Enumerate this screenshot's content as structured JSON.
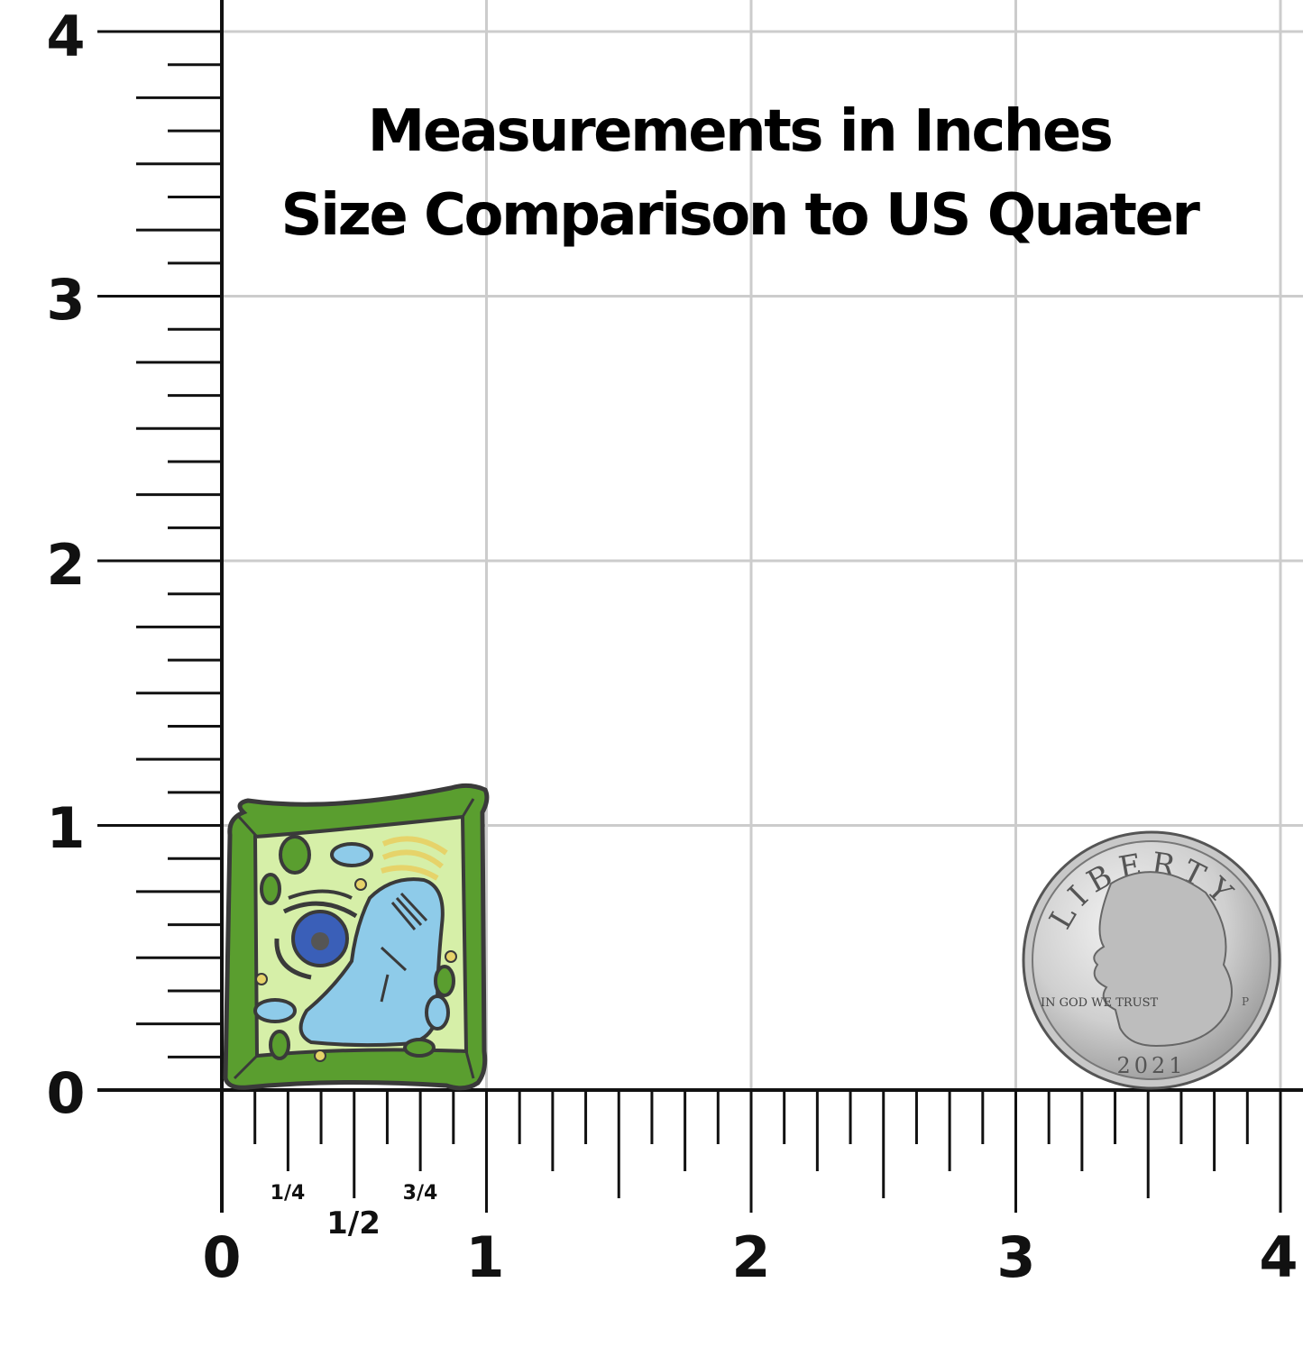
{
  "title": {
    "line1": "Measurements in Inches",
    "line2": "Size Comparison to US Quater"
  },
  "ruler": {
    "unit": "inches",
    "y_labels": [
      "0",
      "1",
      "2",
      "3",
      "4"
    ],
    "x_labels": [
      "0",
      "1",
      "2",
      "3",
      "4"
    ],
    "fraction_labels": {
      "quarter": "1/4",
      "half": "1/2",
      "three_quarter": "3/4"
    },
    "minor_divisions_per_inch": 8,
    "grid": true
  },
  "pin": {
    "subject": "plant cell enamel pin",
    "width_in": 1.0,
    "height_in": 1.15
  },
  "coin": {
    "subject": "US quarter",
    "diameter_in": 0.955,
    "inscription_top": "LIBERTY",
    "inscription_left": "IN GOD WE TRUST",
    "year": "2021",
    "mint_mark": "P"
  },
  "colors": {
    "grid": "#cccccc",
    "ruler": "#111111",
    "cell_wall": "#5a9e2f",
    "cytoplasm": "#d6efa8",
    "vacuole": "#8ecbe9",
    "nucleus": "#3a5fb8"
  }
}
